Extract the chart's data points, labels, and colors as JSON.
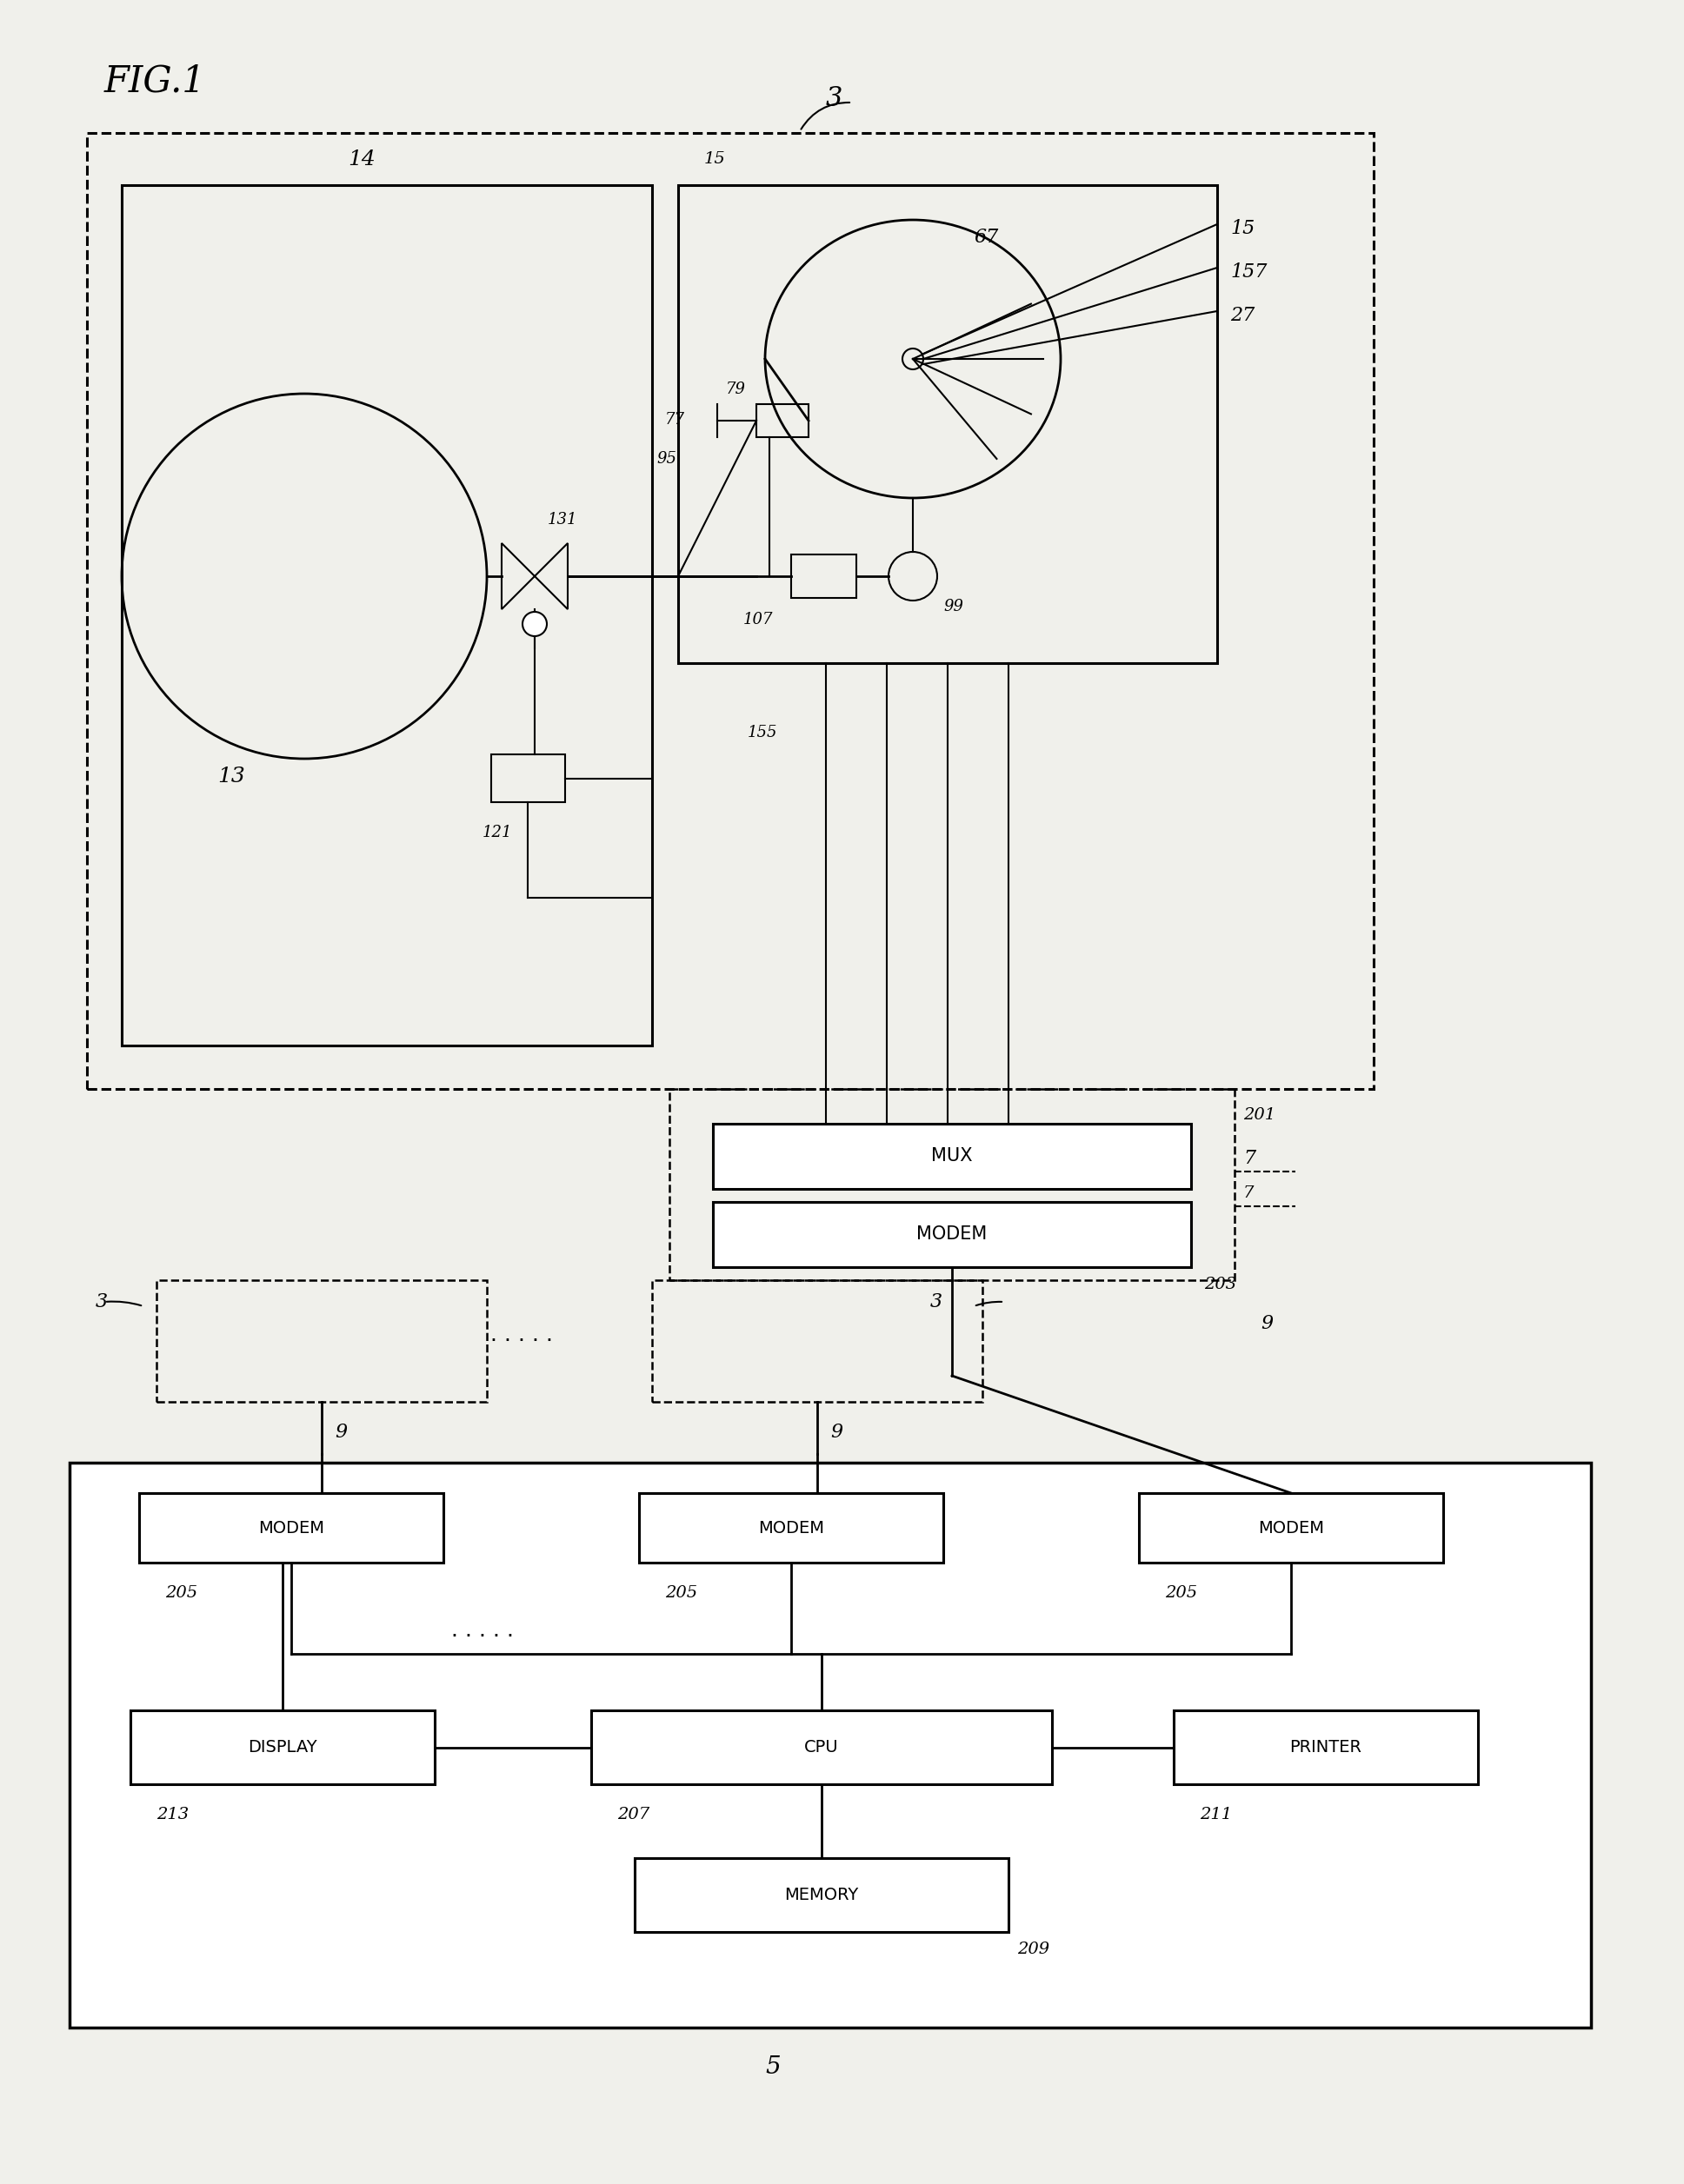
{
  "bg_color": "#f0f0eb",
  "lc": "black",
  "fig_label": "FIG.1",
  "label_3_top": "3",
  "label_14": "14",
  "label_13": "13",
  "label_131": "131",
  "label_121": "121",
  "label_77": "77",
  "label_95": "95",
  "label_79": "79",
  "label_67": "67",
  "label_15": "15",
  "label_157": "157",
  "label_27": "27",
  "label_99": "99",
  "label_107": "107",
  "label_155": "155",
  "label_201": "201",
  "label_7": "7",
  "label_203": "203",
  "label_MUX": "MUX",
  "label_MODEM": "MODEM",
  "label_3_mid1": "3",
  "label_3_mid2": "3",
  "label_9a": "9",
  "label_9b": "9",
  "label_9c": "9",
  "label_205a": "205",
  "label_205b": "205",
  "label_205c": "205",
  "label_DISPLAY": "DISPLAY",
  "label_CPU": "CPU",
  "label_PRINTER": "PRINTER",
  "label_MEMORY": "MEMORY",
  "label_213": "213",
  "label_207": "207",
  "label_211": "211",
  "label_209": "209",
  "label_5": "5"
}
